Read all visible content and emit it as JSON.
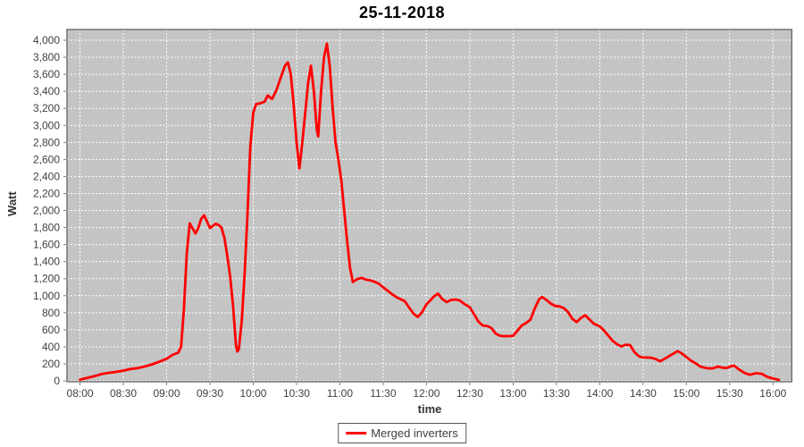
{
  "title": "25-11-2018",
  "legend": {
    "items": [
      {
        "label": "Merged inverters",
        "color": "#ff0000"
      }
    ]
  },
  "colors": {
    "series": "#ff0000",
    "plot_background": "#c4c4c4",
    "gridline": "#ffffff",
    "plot_border": "#737373",
    "tick_label": "#404040",
    "title_text": "#000000"
  },
  "chart_data": {
    "type": "line",
    "title": "25-11-2018",
    "xlabel": "time",
    "ylabel": "Watt",
    "legend_position": "bottom-center",
    "grid": true,
    "x_ticks": [
      "08:00",
      "08:30",
      "09:00",
      "09:30",
      "10:00",
      "10:30",
      "11:00",
      "11:30",
      "12:00",
      "12:30",
      "13:00",
      "13:30",
      "14:00",
      "14:30",
      "15:00",
      "15:30",
      "16:00"
    ],
    "y_ticks": [
      0,
      200,
      400,
      600,
      800,
      1000,
      1200,
      1400,
      1600,
      1800,
      2000,
      2200,
      2400,
      2600,
      2800,
      3000,
      3200,
      3400,
      3600,
      3800,
      4000
    ],
    "y_axis_range": [
      -10,
      4126
    ],
    "x_axis_range_minutes": [
      471,
      973
    ],
    "series": [
      {
        "name": "Merged inverters",
        "color": "#ff0000",
        "points": [
          [
            "08:00",
            15
          ],
          [
            "08:05",
            35
          ],
          [
            "08:10",
            55
          ],
          [
            "08:15",
            80
          ],
          [
            "08:20",
            95
          ],
          [
            "08:25",
            105
          ],
          [
            "08:30",
            120
          ],
          [
            "08:35",
            140
          ],
          [
            "08:40",
            150
          ],
          [
            "08:45",
            170
          ],
          [
            "08:50",
            195
          ],
          [
            "08:55",
            225
          ],
          [
            "09:00",
            260
          ],
          [
            "09:04",
            305
          ],
          [
            "09:08",
            330
          ],
          [
            "09:10",
            400
          ],
          [
            "09:12",
            850
          ],
          [
            "09:14",
            1500
          ],
          [
            "09:16",
            1850
          ],
          [
            "09:18",
            1790
          ],
          [
            "09:20",
            1730
          ],
          [
            "09:22",
            1800
          ],
          [
            "09:24",
            1905
          ],
          [
            "09:26",
            1945
          ],
          [
            "09:28",
            1870
          ],
          [
            "09:30",
            1795
          ],
          [
            "09:32",
            1820
          ],
          [
            "09:34",
            1845
          ],
          [
            "09:36",
            1830
          ],
          [
            "09:38",
            1800
          ],
          [
            "09:40",
            1680
          ],
          [
            "09:42",
            1470
          ],
          [
            "09:44",
            1230
          ],
          [
            "09:46",
            880
          ],
          [
            "09:48",
            420
          ],
          [
            "09:49",
            345
          ],
          [
            "09:50",
            370
          ],
          [
            "09:52",
            700
          ],
          [
            "09:54",
            1250
          ],
          [
            "09:56",
            1950
          ],
          [
            "09:58",
            2750
          ],
          [
            "10:00",
            3150
          ],
          [
            "10:02",
            3250
          ],
          [
            "10:05",
            3260
          ],
          [
            "10:08",
            3280
          ],
          [
            "10:10",
            3350
          ],
          [
            "10:13",
            3310
          ],
          [
            "10:16",
            3410
          ],
          [
            "10:19",
            3560
          ],
          [
            "10:22",
            3700
          ],
          [
            "10:24",
            3740
          ],
          [
            "10:26",
            3600
          ],
          [
            "10:28",
            3250
          ],
          [
            "10:30",
            2800
          ],
          [
            "10:32",
            2495
          ],
          [
            "10:34",
            2800
          ],
          [
            "10:36",
            3150
          ],
          [
            "10:38",
            3500
          ],
          [
            "10:40",
            3700
          ],
          [
            "10:42",
            3400
          ],
          [
            "10:44",
            2950
          ],
          [
            "10:45",
            2870
          ],
          [
            "10:47",
            3400
          ],
          [
            "10:49",
            3800
          ],
          [
            "10:51",
            3960
          ],
          [
            "10:53",
            3700
          ],
          [
            "10:55",
            3200
          ],
          [
            "10:57",
            2800
          ],
          [
            "10:59",
            2600
          ],
          [
            "11:01",
            2350
          ],
          [
            "11:03",
            2000
          ],
          [
            "11:05",
            1650
          ],
          [
            "11:07",
            1330
          ],
          [
            "11:09",
            1160
          ],
          [
            "11:12",
            1195
          ],
          [
            "11:15",
            1210
          ],
          [
            "11:18",
            1190
          ],
          [
            "11:21",
            1180
          ],
          [
            "11:24",
            1165
          ],
          [
            "11:27",
            1140
          ],
          [
            "11:30",
            1100
          ],
          [
            "11:33",
            1060
          ],
          [
            "11:36",
            1020
          ],
          [
            "11:39",
            985
          ],
          [
            "11:42",
            960
          ],
          [
            "11:45",
            935
          ],
          [
            "11:48",
            860
          ],
          [
            "11:51",
            790
          ],
          [
            "11:54",
            750
          ],
          [
            "11:57",
            810
          ],
          [
            "12:00",
            900
          ],
          [
            "12:03",
            950
          ],
          [
            "12:05",
            990
          ],
          [
            "12:08",
            1025
          ],
          [
            "12:11",
            960
          ],
          [
            "12:14",
            925
          ],
          [
            "12:17",
            950
          ],
          [
            "12:20",
            955
          ],
          [
            "12:23",
            945
          ],
          [
            "12:26",
            905
          ],
          [
            "12:30",
            865
          ],
          [
            "12:33",
            780
          ],
          [
            "12:36",
            695
          ],
          [
            "12:39",
            650
          ],
          [
            "12:42",
            645
          ],
          [
            "12:45",
            620
          ],
          [
            "12:48",
            555
          ],
          [
            "12:51",
            530
          ],
          [
            "12:54",
            525
          ],
          [
            "12:57",
            525
          ],
          [
            "13:00",
            530
          ],
          [
            "13:03",
            590
          ],
          [
            "13:06",
            650
          ],
          [
            "13:09",
            680
          ],
          [
            "13:12",
            720
          ],
          [
            "13:15",
            850
          ],
          [
            "13:18",
            960
          ],
          [
            "13:20",
            985
          ],
          [
            "13:23",
            950
          ],
          [
            "13:26",
            910
          ],
          [
            "13:29",
            880
          ],
          [
            "13:32",
            875
          ],
          [
            "13:35",
            855
          ],
          [
            "13:38",
            810
          ],
          [
            "13:41",
            730
          ],
          [
            "13:44",
            690
          ],
          [
            "13:47",
            740
          ],
          [
            "13:50",
            770
          ],
          [
            "13:53",
            720
          ],
          [
            "13:56",
            670
          ],
          [
            "14:00",
            640
          ],
          [
            "14:03",
            590
          ],
          [
            "14:06",
            530
          ],
          [
            "14:09",
            470
          ],
          [
            "14:12",
            430
          ],
          [
            "14:15",
            405
          ],
          [
            "14:18",
            425
          ],
          [
            "14:21",
            420
          ],
          [
            "14:24",
            340
          ],
          [
            "14:27",
            290
          ],
          [
            "14:30",
            275
          ],
          [
            "14:33",
            275
          ],
          [
            "14:36",
            270
          ],
          [
            "14:39",
            255
          ],
          [
            "14:42",
            230
          ],
          [
            "14:46",
            270
          ],
          [
            "14:50",
            310
          ],
          [
            "14:54",
            350
          ],
          [
            "14:57",
            320
          ],
          [
            "15:00",
            280
          ],
          [
            "15:03",
            240
          ],
          [
            "15:06",
            210
          ],
          [
            "15:10",
            165
          ],
          [
            "15:14",
            150
          ],
          [
            "15:18",
            145
          ],
          [
            "15:22",
            168
          ],
          [
            "15:25",
            155
          ],
          [
            "15:28",
            152
          ],
          [
            "15:31",
            172
          ],
          [
            "15:33",
            180
          ],
          [
            "15:36",
            140
          ],
          [
            "15:40",
            95
          ],
          [
            "15:44",
            72
          ],
          [
            "15:48",
            90
          ],
          [
            "15:52",
            85
          ],
          [
            "15:56",
            48
          ],
          [
            "16:00",
            28
          ],
          [
            "16:04",
            12
          ]
        ]
      }
    ]
  }
}
